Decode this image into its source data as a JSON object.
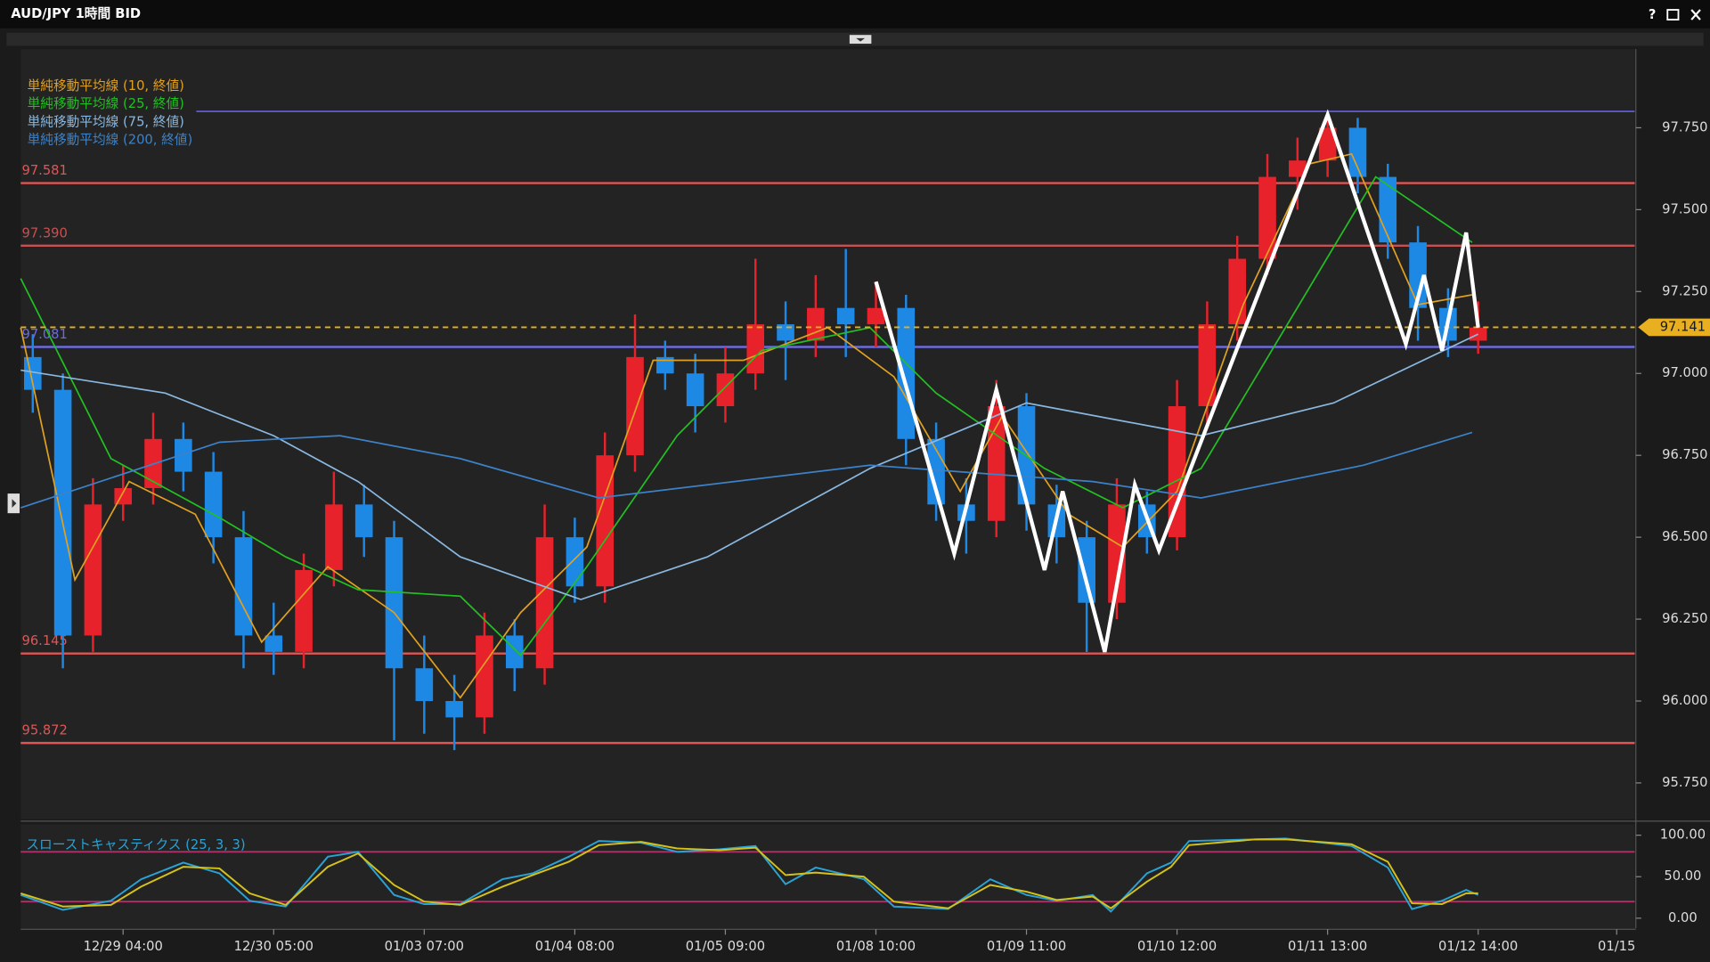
{
  "window": {
    "title": "AUD/JPY 1時間 BID",
    "help": "?"
  },
  "chart_data": [
    {
      "type": "candlestick",
      "x": [
        -15,
        -10,
        -5,
        0,
        5,
        10,
        15,
        20,
        25,
        30,
        35,
        40,
        45,
        50,
        55,
        60,
        65,
        70,
        75,
        80,
        85,
        90,
        95,
        100,
        105,
        110,
        115,
        120,
        125,
        130,
        135,
        140,
        145,
        150,
        155,
        160,
        165,
        170,
        175,
        180,
        185,
        190,
        195,
        200,
        205,
        210,
        215,
        220,
        225
      ],
      "open": [
        97.05,
        96.95,
        96.2,
        96.6,
        96.65,
        96.8,
        96.7,
        96.5,
        96.2,
        96.15,
        96.4,
        96.6,
        96.5,
        96.1,
        96.0,
        95.95,
        96.2,
        96.1,
        96.5,
        96.35,
        96.75,
        97.05,
        97.0,
        96.9,
        97.0,
        97.15,
        97.1,
        97.2,
        97.15,
        97.2,
        96.8,
        96.6,
        96.55,
        96.9,
        96.6,
        96.5,
        96.3,
        96.6,
        96.5,
        96.9,
        97.15,
        97.35,
        97.6,
        97.65,
        97.75,
        97.6,
        97.4,
        97.2,
        97.1
      ],
      "high": [
        97.12,
        97.0,
        96.68,
        96.72,
        96.88,
        96.85,
        96.76,
        96.58,
        96.3,
        96.45,
        96.7,
        96.66,
        96.55,
        96.2,
        96.08,
        96.27,
        96.25,
        96.6,
        96.56,
        96.82,
        97.18,
        97.1,
        97.06,
        97.08,
        97.35,
        97.22,
        97.3,
        97.38,
        97.28,
        97.24,
        96.85,
        96.68,
        96.98,
        96.94,
        96.66,
        96.55,
        96.68,
        96.64,
        96.98,
        97.22,
        97.42,
        97.67,
        97.72,
        97.8,
        97.78,
        97.64,
        97.45,
        97.26,
        97.22
      ],
      "low": [
        96.88,
        96.1,
        96.15,
        96.55,
        96.6,
        96.64,
        96.42,
        96.1,
        96.08,
        96.1,
        96.35,
        96.44,
        95.88,
        95.9,
        95.85,
        95.9,
        96.03,
        96.05,
        96.3,
        96.3,
        96.7,
        96.95,
        96.82,
        96.85,
        96.95,
        96.98,
        97.05,
        97.05,
        97.08,
        96.72,
        96.55,
        96.45,
        96.5,
        96.52,
        96.42,
        96.15,
        96.25,
        96.45,
        96.46,
        96.85,
        97.1,
        97.3,
        97.5,
        97.6,
        97.55,
        97.35,
        97.1,
        97.05,
        97.06
      ],
      "close": [
        96.95,
        96.2,
        96.6,
        96.65,
        96.8,
        96.7,
        96.5,
        96.2,
        96.15,
        96.4,
        96.6,
        96.5,
        96.1,
        96.0,
        95.95,
        96.2,
        96.1,
        96.5,
        96.35,
        96.75,
        97.05,
        97.0,
        96.9,
        97.0,
        97.15,
        97.1,
        97.2,
        97.15,
        97.2,
        96.8,
        96.6,
        96.55,
        96.9,
        96.6,
        96.5,
        96.3,
        96.6,
        96.5,
        96.9,
        97.15,
        97.35,
        97.6,
        97.65,
        97.75,
        97.6,
        97.4,
        97.2,
        97.1,
        97.14
      ],
      "up_color": "#e8222b",
      "down_color": "#1e88e5",
      "series": [
        {
          "name": "単純移動平均線 (10, 終値)",
          "color": "#e0a020",
          "x": [
            -17,
            -8,
            1,
            12,
            23,
            34,
            45,
            56,
            66,
            77,
            88,
            103,
            117,
            128,
            139,
            146,
            157,
            166,
            175,
            186,
            197,
            204,
            215,
            224
          ],
          "values": [
            97.14,
            96.37,
            96.67,
            96.57,
            96.18,
            96.41,
            96.27,
            96.01,
            96.27,
            96.47,
            97.04,
            97.04,
            97.14,
            96.99,
            96.64,
            96.87,
            96.57,
            96.47,
            96.64,
            97.21,
            97.64,
            97.67,
            97.21,
            97.24
          ]
        },
        {
          "name": "単純移動平均線 (25, 終値)",
          "color": "#22c022",
          "x": [
            -17,
            -2,
            16,
            27,
            39,
            56,
            66,
            77,
            92,
            106,
            124,
            135,
            153,
            166,
            179,
            193,
            208,
            224
          ],
          "values": [
            97.29,
            96.74,
            96.56,
            96.44,
            96.34,
            96.32,
            96.14,
            96.41,
            96.81,
            97.07,
            97.14,
            96.94,
            96.71,
            96.59,
            96.71,
            97.14,
            97.6,
            97.4
          ]
        },
        {
          "name": "単純移動平均線 (75, 終値)",
          "color": "#8ab8e0",
          "x": [
            -17,
            7,
            25,
            39,
            56,
            76,
            97,
            124,
            150,
            179,
            201,
            225
          ],
          "values": [
            97.01,
            96.94,
            96.81,
            96.67,
            96.44,
            96.31,
            96.44,
            96.71,
            96.91,
            96.81,
            96.91,
            97.12
          ]
        },
        {
          "name": "単純移動平均線 (200, 終値)",
          "color": "#3c82c8",
          "x": [
            -17,
            16,
            36,
            56,
            79,
            124,
            161,
            179,
            206,
            224
          ],
          "values": [
            96.59,
            96.79,
            96.81,
            96.74,
            96.62,
            96.72,
            96.67,
            96.62,
            96.72,
            96.82
          ]
        }
      ],
      "levels": [
        {
          "value": 97.581,
          "color": "#e05555"
        },
        {
          "value": 97.39,
          "label": "97.390",
          "color": "#c85050"
        },
        {
          "value": 97.081,
          "color": "#6b6bdd"
        },
        {
          "value": 96.145,
          "color": "#e05555"
        },
        {
          "value": 95.872,
          "color": "#e05555"
        }
      ],
      "guide_lines": [
        {
          "value": 97.8,
          "color": "#5a5ac8"
        }
      ],
      "current_price": {
        "value": 97.141,
        "color": "#e8b020"
      },
      "drawing": {
        "color": "#ffffff",
        "x": [
          125,
          138,
          145,
          153,
          156,
          163,
          168,
          172,
          200,
          213,
          216,
          219,
          223,
          225
        ],
        "values": [
          97.28,
          96.45,
          96.95,
          96.4,
          96.64,
          96.15,
          96.66,
          96.46,
          97.79,
          97.09,
          97.3,
          97.07,
          97.43,
          97.14
        ]
      },
      "xlim": [
        -17,
        251
      ],
      "xticks": [
        {
          "value": 0,
          "label": "12/29 04:00"
        },
        {
          "value": 25,
          "label": "12/30 05:00"
        },
        {
          "value": 50,
          "label": "01/03 07:00"
        },
        {
          "value": 75,
          "label": "01/04 08:00"
        },
        {
          "value": 100,
          "label": "01/05 09:00"
        },
        {
          "value": 125,
          "label": "01/08 10:00"
        },
        {
          "value": 150,
          "label": "01/09 11:00"
        },
        {
          "value": 175,
          "label": "01/10 12:00"
        },
        {
          "value": 200,
          "label": "01/11 13:00"
        },
        {
          "value": 225,
          "label": "01/12 14:00"
        },
        {
          "value": 248,
          "label": "01/15"
        }
      ],
      "ylim": [
        95.64,
        97.99
      ],
      "yticks": [
        {
          "value": 95.75,
          "label": "95.750"
        },
        {
          "value": 96,
          "label": "96.000"
        },
        {
          "value": 96.25,
          "label": "96.250"
        },
        {
          "value": 96.5,
          "label": "96.500"
        },
        {
          "value": 96.75,
          "label": "96.750"
        },
        {
          "value": 97,
          "label": "97.000"
        },
        {
          "value": 97.25,
          "label": "97.250"
        },
        {
          "value": 97.5,
          "label": "97.500"
        },
        {
          "value": 97.75,
          "label": "97.750"
        }
      ]
    },
    {
      "type": "line",
      "title": "スローストキャスティクス (25, 3, 3)",
      "x": [
        -17,
        -10,
        -2,
        3,
        10,
        16,
        21,
        27,
        34,
        39,
        45,
        50,
        56,
        63,
        68,
        74,
        79,
        86,
        92,
        99,
        105,
        110,
        115,
        123,
        128,
        137,
        144,
        150,
        155,
        161,
        164,
        170,
        174,
        177,
        188,
        193,
        204,
        210,
        214,
        219,
        223,
        225
      ],
      "series": [
        {
          "color": "#29a3d6",
          "values": [
            28,
            10,
            21,
            47,
            67,
            54,
            21,
            14,
            74,
            80,
            28,
            17,
            17,
            47,
            54,
            74,
            93,
            91,
            80,
            83,
            87,
            41,
            61,
            47,
            14,
            11,
            47,
            28,
            21,
            28,
            8,
            54,
            67,
            93,
            95,
            96,
            87,
            61,
            11,
            21,
            34,
            28
          ]
        },
        {
          "color": "#d4c21a",
          "values": [
            30,
            14,
            16,
            38,
            62,
            60,
            30,
            16,
            62,
            78,
            40,
            20,
            16,
            38,
            52,
            68,
            88,
            92,
            84,
            82,
            85,
            52,
            55,
            50,
            20,
            12,
            40,
            32,
            22,
            26,
            12,
            44,
            62,
            88,
            95,
            95,
            89,
            68,
            18,
            17,
            30,
            30
          ]
        }
      ],
      "levels": [
        {
          "value": 80,
          "color": "#b0306a"
        },
        {
          "value": 20,
          "color": "#b0306a"
        }
      ],
      "xlim": [
        -17,
        251
      ],
      "ylim": [
        -12,
        113
      ],
      "yticks": [
        {
          "value": 0,
          "label": "0.00"
        },
        {
          "value": 50,
          "label": "50.00"
        },
        {
          "value": 100,
          "label": "100.00"
        }
      ]
    }
  ]
}
